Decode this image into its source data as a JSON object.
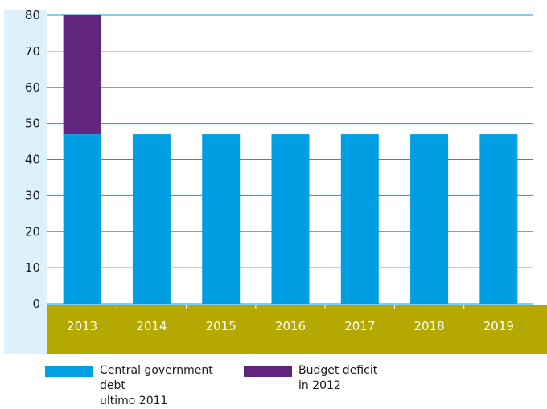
{
  "chart_data": {
    "type": "bar",
    "stacked": true,
    "categories": [
      "2013",
      "2014",
      "2015",
      "2016",
      "2017",
      "2018",
      "2019"
    ],
    "series": [
      {
        "name": "Central government debt ultimo 2011",
        "color": "#009fe3",
        "values": [
          47,
          47,
          47,
          47,
          47,
          47,
          47
        ]
      },
      {
        "name": "Budget deficit in 2012",
        "color": "#62257d",
        "values": [
          33,
          0,
          0,
          0,
          0,
          0,
          0
        ]
      }
    ],
    "y_ticks": [
      "0",
      "10",
      "20",
      "30",
      "40",
      "50",
      "60",
      "70",
      "80"
    ],
    "ylim": [
      0,
      80
    ],
    "grid": true,
    "legend_position": "bottom",
    "colors": {
      "axis_panel": "#ddf1fb",
      "gridline": "#009fe3",
      "category_band": "#b5a800",
      "category_text": "#ffffff"
    }
  },
  "legend": {
    "items": [
      {
        "label_line1": "Central government debt",
        "label_line2": "ultimo 2011",
        "color": "#009fe3"
      },
      {
        "label_line1": "Budget deficit",
        "label_line2": "in 2012",
        "color": "#62257d"
      }
    ]
  }
}
